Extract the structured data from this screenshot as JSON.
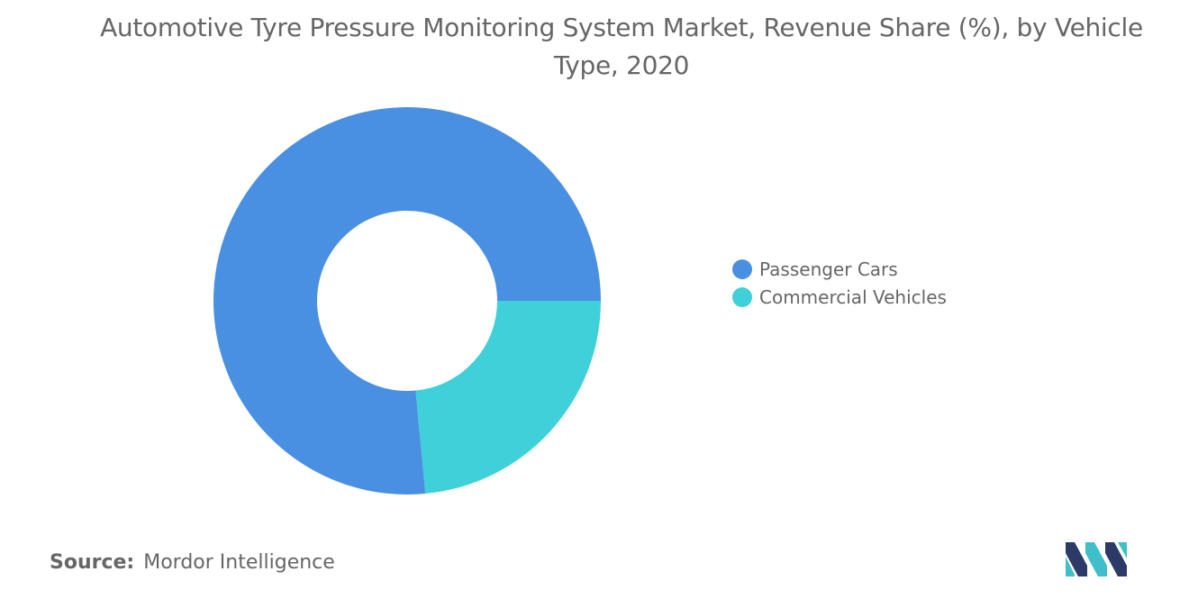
{
  "title": "Automotive Tyre Pressure Monitoring System Market, Revenue Share (%), by Vehicle Type, 2020",
  "source": {
    "label": "Source:",
    "text": "Mordor Intelligence"
  },
  "chart_data": {
    "type": "pie",
    "style": "donut",
    "title": "Automotive Tyre Pressure Monitoring System Market, Revenue Share (%), by Vehicle Type, 2020",
    "categories": [
      "Passenger Cars",
      "Commercial Vehicles"
    ],
    "values": [
      76.5,
      23.5
    ],
    "colors": [
      "#4a90e2",
      "#3fd0d9"
    ],
    "legend_position": "right",
    "start_angle": "3 o'clock, clockwise"
  },
  "logo": {
    "icon": "mordor-intelligence-logo",
    "colors": [
      "#2b3a67",
      "#3fbfc9"
    ]
  }
}
